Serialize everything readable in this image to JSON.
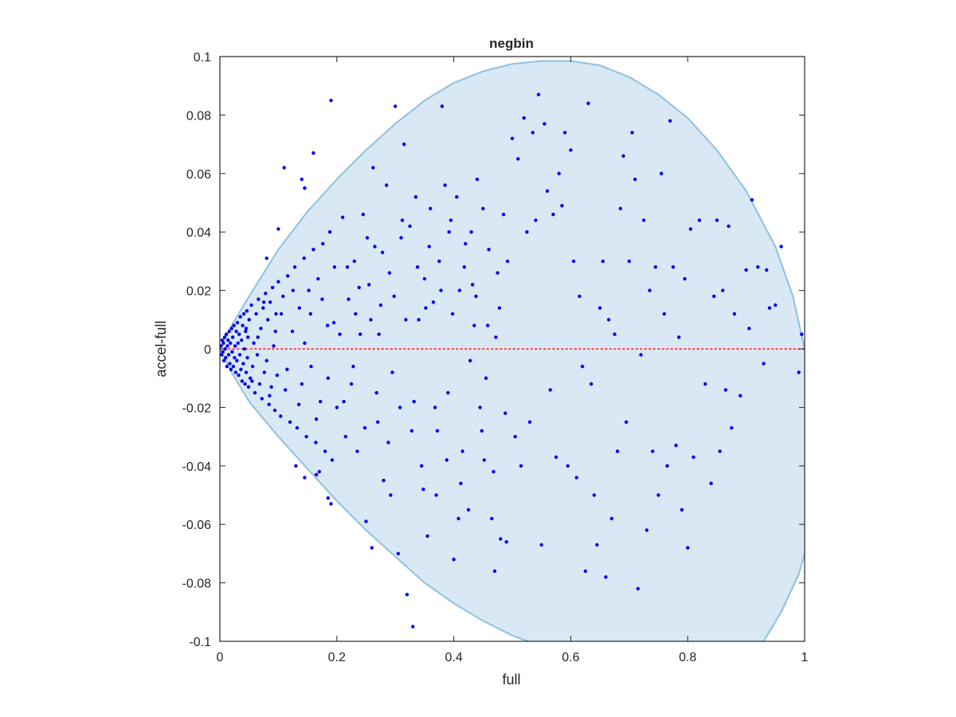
{
  "chart_data": {
    "type": "scatter",
    "title": "negbin",
    "xlabel": "full",
    "ylabel": "accel-full",
    "xlim": [
      0,
      1
    ],
    "ylim": [
      -0.1,
      0.1
    ],
    "xticks": [
      0,
      0.2,
      0.4,
      0.6,
      0.8,
      1
    ],
    "xtick_labels": [
      "0",
      "0.2",
      "0.4",
      "0.6",
      "0.8",
      "1"
    ],
    "yticks": [
      -0.1,
      -0.08,
      -0.06,
      -0.04,
      -0.02,
      0,
      0.02,
      0.04,
      0.06,
      0.08,
      0.1
    ],
    "ytick_labels": [
      "-0.1",
      "-0.08",
      "-0.06",
      "-0.04",
      "-0.02",
      "0",
      "0.02",
      "0.04",
      "0.06",
      "0.08",
      "0.1"
    ],
    "grid": false,
    "colors": {
      "points": "#0000ee",
      "zero_line": "#ff4444",
      "region_fill": "#d8e8f4",
      "region_edge": "#8fc0e0",
      "axis": "#262626"
    },
    "reference_line": {
      "y": 0,
      "style": "dotted"
    },
    "shaded_region": {
      "description_source": "envelope",
      "upper": [
        [
          0,
          0
        ],
        [
          0.02,
          0.008
        ],
        [
          0.05,
          0.018
        ],
        [
          0.1,
          0.034
        ],
        [
          0.15,
          0.047
        ],
        [
          0.2,
          0.058
        ],
        [
          0.25,
          0.068
        ],
        [
          0.3,
          0.077
        ],
        [
          0.35,
          0.085
        ],
        [
          0.4,
          0.091
        ],
        [
          0.45,
          0.095
        ],
        [
          0.5,
          0.0975
        ],
        [
          0.55,
          0.0985
        ],
        [
          0.6,
          0.0985
        ],
        [
          0.65,
          0.097
        ],
        [
          0.7,
          0.093
        ],
        [
          0.75,
          0.087
        ],
        [
          0.8,
          0.079
        ],
        [
          0.85,
          0.068
        ],
        [
          0.9,
          0.054
        ],
        [
          0.95,
          0.035
        ],
        [
          0.98,
          0.018
        ],
        [
          1.0,
          0.0
        ]
      ],
      "lower": [
        [
          0,
          0
        ],
        [
          0.02,
          -0.008
        ],
        [
          0.05,
          -0.018
        ],
        [
          0.1,
          -0.03
        ],
        [
          0.15,
          -0.041
        ],
        [
          0.2,
          -0.052
        ],
        [
          0.25,
          -0.062
        ],
        [
          0.3,
          -0.071
        ],
        [
          0.35,
          -0.08
        ],
        [
          0.4,
          -0.087
        ],
        [
          0.45,
          -0.093
        ],
        [
          0.5,
          -0.098
        ],
        [
          0.527,
          -0.1
        ],
        [
          0.93,
          -0.1
        ],
        [
          0.96,
          -0.09
        ],
        [
          0.99,
          -0.077
        ],
        [
          1.0,
          -0.07
        ]
      ]
    },
    "points": [
      [
        0.002,
        0.001
      ],
      [
        0.003,
        -0.002
      ],
      [
        0.004,
        0.003
      ],
      [
        0.005,
        -0.001
      ],
      [
        0.006,
        0.002
      ],
      [
        0.007,
        -0.004
      ],
      [
        0.008,
        0.004
      ],
      [
        0.009,
        0.0
      ],
      [
        0.01,
        -0.003
      ],
      [
        0.011,
        0.005
      ],
      [
        0.012,
        -0.006
      ],
      [
        0.013,
        0.001
      ],
      [
        0.014,
        0.003
      ],
      [
        0.015,
        -0.002
      ],
      [
        0.016,
        0.006
      ],
      [
        0.017,
        -0.005
      ],
      [
        0.018,
        0.002
      ],
      [
        0.019,
        -0.007
      ],
      [
        0.02,
        0.007
      ],
      [
        0.021,
        -0.001
      ],
      [
        0.022,
        0.004
      ],
      [
        0.023,
        -0.006
      ],
      [
        0.024,
        0.008
      ],
      [
        0.025,
        -0.003
      ],
      [
        0.026,
        0.001
      ],
      [
        0.027,
        -0.008
      ],
      [
        0.028,
        0.006
      ],
      [
        0.029,
        -0.004
      ],
      [
        0.03,
        0.009
      ],
      [
        0.031,
        0.002
      ],
      [
        0.032,
        -0.009
      ],
      [
        0.033,
        0.005
      ],
      [
        0.034,
        -0.002
      ],
      [
        0.035,
        0.011
      ],
      [
        0.036,
        -0.007
      ],
      [
        0.037,
        0.003
      ],
      [
        0.038,
        -0.011
      ],
      [
        0.039,
        0.008
      ],
      [
        0.04,
        -0.005
      ],
      [
        0.041,
        0.012
      ],
      [
        0.042,
        0.0
      ],
      [
        0.043,
        -0.012
      ],
      [
        0.044,
        0.006
      ],
      [
        0.045,
        -0.008
      ],
      [
        0.046,
        0.013
      ],
      [
        0.047,
        -0.003
      ],
      [
        0.048,
        0.004
      ],
      [
        0.049,
        -0.013
      ],
      [
        0.05,
        0.01
      ],
      [
        0.052,
        -0.01
      ],
      [
        0.054,
        0.015
      ],
      [
        0.056,
        -0.006
      ],
      [
        0.058,
        0.002
      ],
      [
        0.06,
        -0.015
      ],
      [
        0.062,
        0.012
      ],
      [
        0.064,
        -0.002
      ],
      [
        0.066,
        0.017
      ],
      [
        0.068,
        -0.012
      ],
      [
        0.07,
        0.007
      ],
      [
        0.072,
        -0.017
      ],
      [
        0.074,
        0.014
      ],
      [
        0.076,
        -0.008
      ],
      [
        0.078,
        0.019
      ],
      [
        0.08,
        -0.004
      ],
      [
        0.082,
        0.01
      ],
      [
        0.084,
        -0.019
      ],
      [
        0.086,
        0.016
      ],
      [
        0.088,
        -0.013
      ],
      [
        0.09,
        0.021
      ],
      [
        0.092,
        0.001
      ],
      [
        0.094,
        -0.021
      ],
      [
        0.096,
        0.012
      ],
      [
        0.098,
        -0.009
      ],
      [
        0.1,
        0.023
      ],
      [
        0.104,
        -0.023
      ],
      [
        0.108,
        0.018
      ],
      [
        0.112,
        -0.014
      ],
      [
        0.116,
        0.025
      ],
      [
        0.12,
        -0.025
      ],
      [
        0.124,
        0.006
      ],
      [
        0.128,
        0.028
      ],
      [
        0.132,
        -0.027
      ],
      [
        0.136,
        0.014
      ],
      [
        0.14,
        -0.012
      ],
      [
        0.144,
        0.031
      ],
      [
        0.148,
        -0.03
      ],
      [
        0.152,
        0.02
      ],
      [
        0.156,
        -0.006
      ],
      [
        0.16,
        0.034
      ],
      [
        0.164,
        -0.032
      ],
      [
        0.168,
        0.024
      ],
      [
        0.172,
        -0.018
      ],
      [
        0.176,
        0.036
      ],
      [
        0.18,
        -0.035
      ],
      [
        0.184,
        0.008
      ],
      [
        0.188,
        0.04
      ],
      [
        0.192,
        -0.038
      ],
      [
        0.196,
        0.028
      ],
      [
        0.2,
        -0.02
      ],
      [
        0.045,
        0.007
      ],
      [
        0.055,
        -0.011
      ],
      [
        0.065,
        0.004
      ],
      [
        0.075,
        0.016
      ],
      [
        0.085,
        -0.016
      ],
      [
        0.095,
        0.006
      ],
      [
        0.105,
        0.012
      ],
      [
        0.115,
        -0.007
      ],
      [
        0.125,
        0.02
      ],
      [
        0.135,
        -0.019
      ],
      [
        0.145,
        0.002
      ],
      [
        0.155,
        0.012
      ],
      [
        0.165,
        -0.024
      ],
      [
        0.175,
        0.017
      ],
      [
        0.185,
        -0.01
      ],
      [
        0.195,
        0.009
      ],
      [
        0.11,
        0.062
      ],
      [
        0.14,
        0.058
      ],
      [
        0.145,
        0.055
      ],
      [
        0.16,
        0.067
      ],
      [
        0.19,
        0.085
      ],
      [
        0.185,
        -0.051
      ],
      [
        0.19,
        -0.053
      ],
      [
        0.1,
        0.041
      ],
      [
        0.08,
        0.031
      ],
      [
        0.13,
        -0.04
      ],
      [
        0.145,
        -0.044
      ],
      [
        0.165,
        -0.043
      ],
      [
        0.17,
        -0.042
      ],
      [
        0.21,
        0.045
      ],
      [
        0.215,
        -0.03
      ],
      [
        0.22,
        0.017
      ],
      [
        0.225,
        -0.012
      ],
      [
        0.23,
        0.03
      ],
      [
        0.235,
        -0.035
      ],
      [
        0.24,
        0.005
      ],
      [
        0.245,
        0.046
      ],
      [
        0.25,
        -0.059
      ],
      [
        0.255,
        0.022
      ],
      [
        0.26,
        -0.068
      ],
      [
        0.262,
        0.062
      ],
      [
        0.265,
        0.035
      ],
      [
        0.27,
        -0.025
      ],
      [
        0.275,
        0.015
      ],
      [
        0.28,
        -0.045
      ],
      [
        0.285,
        0.056
      ],
      [
        0.29,
        0.026
      ],
      [
        0.295,
        -0.008
      ],
      [
        0.3,
        0.083
      ],
      [
        0.305,
        -0.07
      ],
      [
        0.31,
        0.038
      ],
      [
        0.315,
        0.07
      ],
      [
        0.32,
        -0.084
      ],
      [
        0.325,
        0.042
      ],
      [
        0.33,
        -0.095
      ],
      [
        0.335,
        0.052
      ],
      [
        0.34,
        0.01
      ],
      [
        0.345,
        -0.04
      ],
      [
        0.35,
        0.024
      ],
      [
        0.355,
        -0.064
      ],
      [
        0.36,
        0.048
      ],
      [
        0.365,
        0.016
      ],
      [
        0.37,
        -0.05
      ],
      [
        0.375,
        0.03
      ],
      [
        0.38,
        0.083
      ],
      [
        0.385,
        0.056
      ],
      [
        0.39,
        -0.015
      ],
      [
        0.395,
        0.044
      ],
      [
        0.4,
        -0.072
      ],
      [
        0.405,
        0.052
      ],
      [
        0.41,
        0.02
      ],
      [
        0.415,
        -0.035
      ],
      [
        0.42,
        0.036
      ],
      [
        0.425,
        -0.055
      ],
      [
        0.43,
        0.04
      ],
      [
        0.435,
        0.008
      ],
      [
        0.44,
        0.058
      ],
      [
        0.445,
        -0.02
      ],
      [
        0.45,
        0.048
      ],
      [
        0.455,
        -0.01
      ],
      [
        0.46,
        0.034
      ],
      [
        0.465,
        -0.058
      ],
      [
        0.47,
        -0.076
      ],
      [
        0.475,
        0.026
      ],
      [
        0.48,
        -0.065
      ],
      [
        0.485,
        0.046
      ],
      [
        0.49,
        -0.066
      ],
      [
        0.5,
        0.072
      ],
      [
        0.505,
        -0.03
      ],
      [
        0.51,
        0.065
      ],
      [
        0.515,
        -0.04
      ],
      [
        0.52,
        0.079
      ],
      [
        0.525,
        0.04
      ],
      [
        0.53,
        -0.025
      ],
      [
        0.535,
        0.074
      ],
      [
        0.54,
        0.044
      ],
      [
        0.545,
        0.087
      ],
      [
        0.55,
        -0.067
      ],
      [
        0.555,
        0.077
      ],
      [
        0.56,
        0.054
      ],
      [
        0.565,
        -0.014
      ],
      [
        0.57,
        0.046
      ],
      [
        0.575,
        -0.037
      ],
      [
        0.58,
        0.06
      ],
      [
        0.585,
        0.049
      ],
      [
        0.59,
        0.074
      ],
      [
        0.595,
        -0.04
      ],
      [
        0.6,
        0.068
      ],
      [
        0.605,
        0.03
      ],
      [
        0.61,
        -0.044
      ],
      [
        0.615,
        0.018
      ],
      [
        0.62,
        -0.006
      ],
      [
        0.625,
        -0.076
      ],
      [
        0.63,
        0.084
      ],
      [
        0.635,
        -0.012
      ],
      [
        0.64,
        -0.05
      ],
      [
        0.645,
        -0.067
      ],
      [
        0.65,
        0.014
      ],
      [
        0.655,
        0.03
      ],
      [
        0.66,
        -0.078
      ],
      [
        0.665,
        0.01
      ],
      [
        0.67,
        -0.058
      ],
      [
        0.675,
        0.005
      ],
      [
        0.68,
        -0.035
      ],
      [
        0.685,
        0.048
      ],
      [
        0.69,
        0.066
      ],
      [
        0.695,
        -0.025
      ],
      [
        0.7,
        0.03
      ],
      [
        0.705,
        0.074
      ],
      [
        0.71,
        0.058
      ],
      [
        0.715,
        -0.082
      ],
      [
        0.72,
        -0.002
      ],
      [
        0.725,
        0.044
      ],
      [
        0.73,
        -0.062
      ],
      [
        0.735,
        0.02
      ],
      [
        0.74,
        -0.035
      ],
      [
        0.745,
        0.028
      ],
      [
        0.75,
        -0.05
      ],
      [
        0.755,
        0.06
      ],
      [
        0.76,
        0.012
      ],
      [
        0.765,
        -0.04
      ],
      [
        0.77,
        0.078
      ],
      [
        0.775,
        0.028
      ],
      [
        0.78,
        -0.033
      ],
      [
        0.785,
        0.004
      ],
      [
        0.79,
        -0.055
      ],
      [
        0.795,
        0.024
      ],
      [
        0.8,
        -0.068
      ],
      [
        0.805,
        0.041
      ],
      [
        0.81,
        -0.037
      ],
      [
        0.82,
        0.044
      ],
      [
        0.83,
        -0.012
      ],
      [
        0.84,
        -0.046
      ],
      [
        0.845,
        0.018
      ],
      [
        0.85,
        0.044
      ],
      [
        0.855,
        -0.035
      ],
      [
        0.86,
        0.02
      ],
      [
        0.865,
        -0.014
      ],
      [
        0.87,
        0.042
      ],
      [
        0.875,
        -0.027
      ],
      [
        0.88,
        0.012
      ],
      [
        0.89,
        -0.016
      ],
      [
        0.9,
        0.027
      ],
      [
        0.905,
        0.007
      ],
      [
        0.91,
        0.051
      ],
      [
        0.92,
        0.028
      ],
      [
        0.93,
        -0.005
      ],
      [
        0.935,
        0.027
      ],
      [
        0.94,
        0.014
      ],
      [
        0.95,
        0.015
      ],
      [
        0.96,
        0.035
      ],
      [
        0.99,
        -0.008
      ],
      [
        0.995,
        0.005
      ],
      [
        0.205,
        0.005
      ],
      [
        0.212,
        -0.018
      ],
      [
        0.218,
        0.028
      ],
      [
        0.228,
        -0.006
      ],
      [
        0.238,
        0.021
      ],
      [
        0.248,
        -0.027
      ],
      [
        0.258,
        0.01
      ],
      [
        0.268,
        -0.015
      ],
      [
        0.278,
        0.033
      ],
      [
        0.288,
        -0.032
      ],
      [
        0.298,
        0.018
      ],
      [
        0.308,
        -0.02
      ],
      [
        0.318,
        0.01
      ],
      [
        0.328,
        -0.028
      ],
      [
        0.338,
        0.028
      ],
      [
        0.348,
        -0.048
      ],
      [
        0.358,
        0.035
      ],
      [
        0.368,
        -0.02
      ],
      [
        0.378,
        0.02
      ],
      [
        0.388,
        -0.038
      ],
      [
        0.398,
        0.012
      ],
      [
        0.408,
        -0.058
      ],
      [
        0.418,
        0.028
      ],
      [
        0.428,
        -0.004
      ],
      [
        0.438,
        0.018
      ],
      [
        0.448,
        -0.028
      ],
      [
        0.458,
        0.008
      ],
      [
        0.468,
        -0.042
      ],
      [
        0.478,
        0.014
      ],
      [
        0.488,
        -0.022
      ],
      [
        0.232,
        0.012
      ],
      [
        0.252,
        0.038
      ],
      [
        0.272,
        0.005
      ],
      [
        0.292,
        -0.05
      ],
      [
        0.312,
        0.044
      ],
      [
        0.332,
        -0.018
      ],
      [
        0.352,
        0.014
      ],
      [
        0.372,
        -0.028
      ],
      [
        0.392,
        0.04
      ],
      [
        0.412,
        -0.046
      ],
      [
        0.432,
        0.022
      ],
      [
        0.452,
        -0.038
      ],
      [
        0.472,
        0.004
      ],
      [
        0.492,
        0.03
      ]
    ]
  }
}
